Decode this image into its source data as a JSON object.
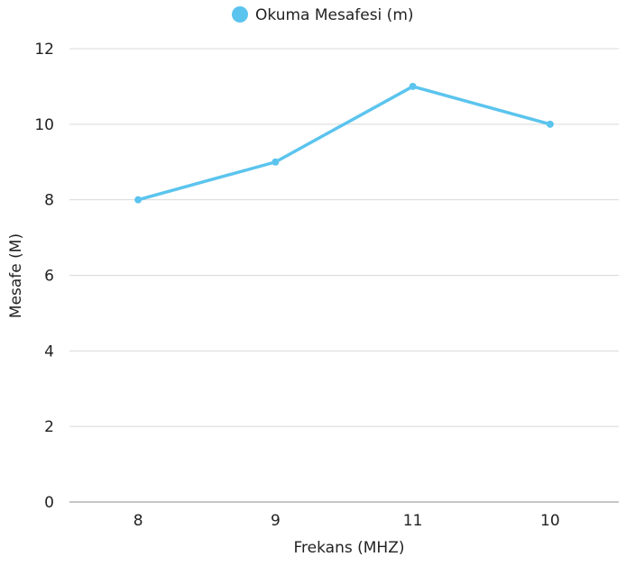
{
  "chart_data": {
    "type": "line",
    "categories": [
      "8",
      "9",
      "11",
      "10"
    ],
    "series": [
      {
        "name": "Okuma Mesafesi (m)",
        "values": [
          8,
          9,
          11,
          10
        ],
        "color": "#5bc4ee"
      }
    ],
    "xlabel": "Frekans (MHZ)",
    "ylabel": "Mesafe (M)",
    "ylim": [
      0,
      12
    ],
    "yticks": [
      "0",
      "2",
      "4",
      "6",
      "8",
      "10",
      "12"
    ],
    "grid": true,
    "legend_position": "top-center"
  }
}
